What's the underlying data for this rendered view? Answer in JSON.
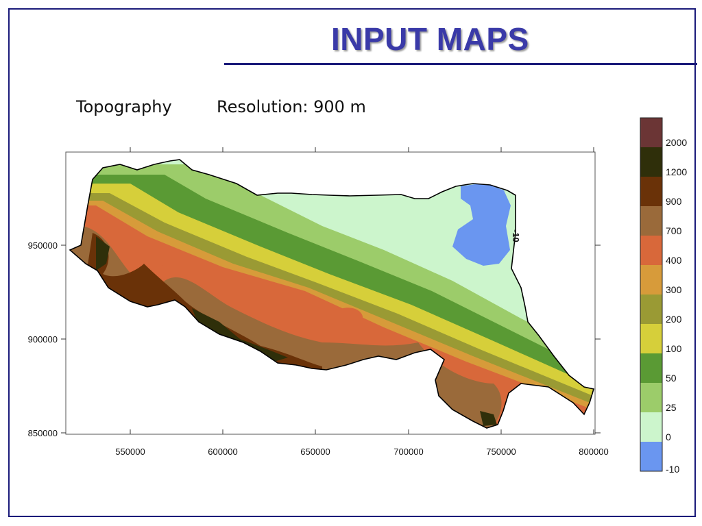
{
  "slide": {
    "title": "INPUT MAPS",
    "map_name": "Topography",
    "resolution": "Resolution: 900 m"
  },
  "map": {
    "x_ticks": [
      "550000",
      "600000",
      "650000",
      "700000",
      "750000",
      "800000"
    ],
    "y_ticks": [
      "950000",
      "900000",
      "850000"
    ],
    "contour_label": "-10"
  },
  "legend": {
    "labels": [
      "2000",
      "1200",
      "900",
      "700",
      "400",
      "300",
      "200",
      "100",
      "50",
      "25",
      "0",
      "-10"
    ],
    "colors": [
      "#6b3535",
      "#2f2f0a",
      "#6a3208",
      "#9a6a3a",
      "#d8683a",
      "#d79b3a",
      "#9a9a34",
      "#d6cf3a",
      "#5a9a34",
      "#9ccc6a",
      "#ccf5cc",
      "#6a96f0"
    ]
  },
  "colors": {
    "title": "#3a3aa8",
    "frame": "#1a1a7a"
  }
}
